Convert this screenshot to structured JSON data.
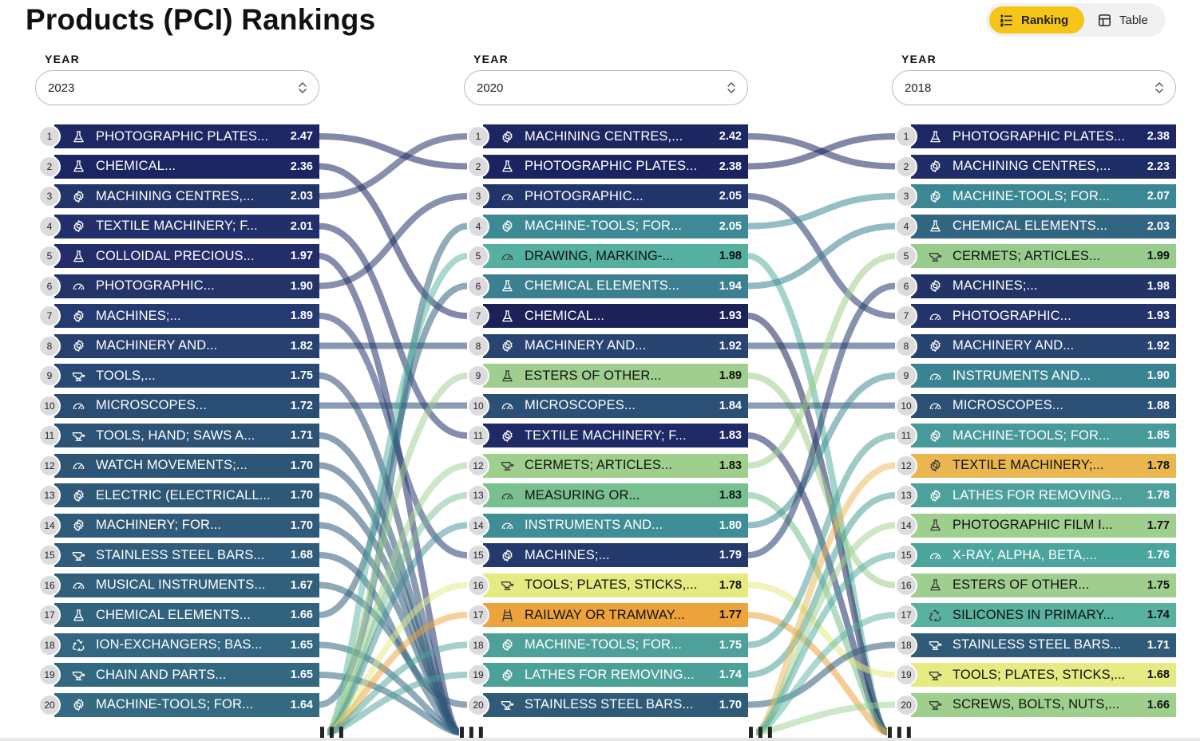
{
  "page": {
    "title": "Products (PCI) Rankings"
  },
  "view_toggle": {
    "ranking_label": "Ranking",
    "table_label": "Table",
    "active": "Ranking"
  },
  "year_label": "YEAR",
  "more_glyph": "▌▌▌",
  "columns": [
    {
      "year": "2023",
      "rows": [
        {
          "rank": "1",
          "name": "PHOTOGRAPHIC PLATES...",
          "value": "2.47",
          "icon": "flask-icon",
          "color": "#1d2763"
        },
        {
          "rank": "2",
          "name": "CHEMICAL...",
          "value": "2.36",
          "icon": "flask-icon",
          "color": "#1b2562"
        },
        {
          "rank": "3",
          "name": "MACHINING CENTRES,...",
          "value": "2.03",
          "icon": "gear-icon",
          "color": "#233568"
        },
        {
          "rank": "4",
          "name": "TEXTILE MACHINERY; F...",
          "value": "2.01",
          "icon": "gear-icon",
          "color": "#21306a"
        },
        {
          "rank": "5",
          "name": "COLLOIDAL PRECIOUS...",
          "value": "1.97",
          "icon": "flask-icon",
          "color": "#222d6a"
        },
        {
          "rank": "6",
          "name": "PHOTOGRAPHIC...",
          "value": "1.90",
          "icon": "gauge-icon",
          "color": "#243469"
        },
        {
          "rank": "7",
          "name": "MACHINES;...",
          "value": "1.89",
          "icon": "gear-icon",
          "color": "#243a70"
        },
        {
          "rank": "8",
          "name": "MACHINERY AND...",
          "value": "1.82",
          "icon": "gear-icon",
          "color": "#27406f"
        },
        {
          "rank": "9",
          "name": "TOOLS,...",
          "value": "1.75",
          "icon": "anvil-icon",
          "color": "#294873"
        },
        {
          "rank": "10",
          "name": "MICROSCOPES...",
          "value": "1.72",
          "icon": "gauge-icon",
          "color": "#2a4d73"
        },
        {
          "rank": "11",
          "name": "TOOLS, HAND; SAWS A...",
          "value": "1.71",
          "icon": "anvil-icon",
          "color": "#2c5275"
        },
        {
          "rank": "12",
          "name": "WATCH MOVEMENTS;...",
          "value": "1.70",
          "icon": "gauge-icon",
          "color": "#2d5576"
        },
        {
          "rank": "13",
          "name": "ELECTRIC (ELECTRICALL...",
          "value": "1.70",
          "icon": "gear-icon",
          "color": "#2e5878"
        },
        {
          "rank": "14",
          "name": "MACHINERY; FOR...",
          "value": "1.70",
          "icon": "gear-icon",
          "color": "#2f5a79"
        },
        {
          "rank": "15",
          "name": "STAINLESS STEEL BARS...",
          "value": "1.68",
          "icon": "anvil-icon",
          "color": "#305d7b"
        },
        {
          "rank": "16",
          "name": "MUSICAL INSTRUMENTS...",
          "value": "1.67",
          "icon": "gauge-icon",
          "color": "#31607c"
        },
        {
          "rank": "17",
          "name": "CHEMICAL ELEMENTS...",
          "value": "1.66",
          "icon": "flask-icon",
          "color": "#32637e"
        },
        {
          "rank": "18",
          "name": "ION-EXCHANGERS; BAS...",
          "value": "1.65",
          "icon": "recycle-icon",
          "color": "#336680"
        },
        {
          "rank": "19",
          "name": "CHAIN AND PARTS...",
          "value": "1.65",
          "icon": "anvil-icon",
          "color": "#336881"
        },
        {
          "rank": "20",
          "name": "MACHINE-TOOLS; FOR...",
          "value": "1.64",
          "icon": "gear-icon",
          "color": "#346b82"
        }
      ]
    },
    {
      "year": "2020",
      "rows": [
        {
          "rank": "1",
          "name": "MACHINING CENTRES,...",
          "value": "2.42",
          "icon": "gear-icon",
          "color": "#1c2660"
        },
        {
          "rank": "2",
          "name": "PHOTOGRAPHIC PLATES...",
          "value": "2.38",
          "icon": "flask-icon",
          "color": "#1b2460"
        },
        {
          "rank": "3",
          "name": "PHOTOGRAPHIC...",
          "value": "2.05",
          "icon": "gauge-icon",
          "color": "#22356b"
        },
        {
          "rank": "4",
          "name": "MACHINE-TOOLS; FOR...",
          "value": "2.05",
          "icon": "gear-icon",
          "color": "#3d8a96"
        },
        {
          "rank": "5",
          "name": "DRAWING, MARKING-...",
          "value": "1.98",
          "icon": "gauge-icon",
          "color": "#56b0a0"
        },
        {
          "rank": "6",
          "name": "CHEMICAL ELEMENTS...",
          "value": "1.94",
          "icon": "flask-icon",
          "color": "#3b7f90"
        },
        {
          "rank": "7",
          "name": "CHEMICAL...",
          "value": "1.93",
          "icon": "flask-icon",
          "color": "#1c2257"
        },
        {
          "rank": "8",
          "name": "MACHINERY AND...",
          "value": "1.92",
          "icon": "gear-icon",
          "color": "#284572"
        },
        {
          "rank": "9",
          "name": "ESTERS OF OTHER...",
          "value": "1.89",
          "icon": "flask-icon",
          "color": "#9fce8e"
        },
        {
          "rank": "10",
          "name": "MICROSCOPES...",
          "value": "1.84",
          "icon": "gauge-icon",
          "color": "#2b4f75"
        },
        {
          "rank": "11",
          "name": "TEXTILE MACHINERY; F...",
          "value": "1.83",
          "icon": "gear-icon",
          "color": "#1e2a66"
        },
        {
          "rank": "12",
          "name": "CERMETS; ARTICLES...",
          "value": "1.83",
          "icon": "anvil-icon",
          "color": "#9ecf8d"
        },
        {
          "rank": "13",
          "name": "MEASURING OR...",
          "value": "1.83",
          "icon": "gauge-icon",
          "color": "#78c08f"
        },
        {
          "rank": "14",
          "name": "INSTRUMENTS AND...",
          "value": "1.80",
          "icon": "gauge-icon",
          "color": "#3f8d96"
        },
        {
          "rank": "15",
          "name": "MACHINES;...",
          "value": "1.79",
          "icon": "gear-icon",
          "color": "#243a6c"
        },
        {
          "rank": "16",
          "name": "TOOLS; PLATES, STICKS,...",
          "value": "1.78",
          "icon": "anvil-icon",
          "color": "#e5ea82"
        },
        {
          "rank": "17",
          "name": "RAILWAY OR TRAMWAY...",
          "value": "1.77",
          "icon": "rail-icon",
          "color": "#eda33c"
        },
        {
          "rank": "18",
          "name": "MACHINE-TOOLS; FOR...",
          "value": "1.75",
          "icon": "gear-icon",
          "color": "#4ea19a"
        },
        {
          "rank": "19",
          "name": "LATHES FOR REMOVING...",
          "value": "1.74",
          "icon": "gear-icon",
          "color": "#4ca09a"
        },
        {
          "rank": "20",
          "name": "STAINLESS STEEL BARS...",
          "value": "1.70",
          "icon": "anvil-icon",
          "color": "#2f5b79"
        }
      ]
    },
    {
      "year": "2018",
      "rows": [
        {
          "rank": "1",
          "name": "PHOTOGRAPHIC PLATES...",
          "value": "2.38",
          "icon": "flask-icon",
          "color": "#1d2763"
        },
        {
          "rank": "2",
          "name": "MACHINING CENTRES,...",
          "value": "2.23",
          "icon": "gear-icon",
          "color": "#1f2d66"
        },
        {
          "rank": "3",
          "name": "MACHINE-TOOLS; FOR...",
          "value": "2.07",
          "icon": "gear-icon",
          "color": "#3c8794"
        },
        {
          "rank": "4",
          "name": "CHEMICAL ELEMENTS...",
          "value": "2.03",
          "icon": "flask-icon",
          "color": "#316581"
        },
        {
          "rank": "5",
          "name": "CERMETS; ARTICLES...",
          "value": "1.99",
          "icon": "anvil-icon",
          "color": "#97cc8c"
        },
        {
          "rank": "6",
          "name": "MACHINES;...",
          "value": "1.98",
          "icon": "gear-icon",
          "color": "#223466"
        },
        {
          "rank": "7",
          "name": "PHOTOGRAPHIC...",
          "value": "1.93",
          "icon": "gauge-icon",
          "color": "#23346a"
        },
        {
          "rank": "8",
          "name": "MACHINERY AND...",
          "value": "1.92",
          "icon": "gear-icon",
          "color": "#284572"
        },
        {
          "rank": "9",
          "name": "INSTRUMENTS AND...",
          "value": "1.90",
          "icon": "gauge-icon",
          "color": "#3a8390"
        },
        {
          "rank": "10",
          "name": "MICROSCOPES...",
          "value": "1.88",
          "icon": "gauge-icon",
          "color": "#2b4f75"
        },
        {
          "rank": "11",
          "name": "MACHINE-TOOLS; FOR...",
          "value": "1.85",
          "icon": "gear-icon",
          "color": "#48999a"
        },
        {
          "rank": "12",
          "name": "TEXTILE MACHINERY;...",
          "value": "1.78",
          "icon": "gear-icon",
          "color": "#eab64f"
        },
        {
          "rank": "13",
          "name": "LATHES FOR REMOVING...",
          "value": "1.78",
          "icon": "gear-icon",
          "color": "#4ea19b"
        },
        {
          "rank": "14",
          "name": "PHOTOGRAPHIC FILM I...",
          "value": "1.77",
          "icon": "flask-icon",
          "color": "#9fcf8e"
        },
        {
          "rank": "15",
          "name": "X-RAY, ALPHA, BETA,...",
          "value": "1.76",
          "icon": "gauge-icon",
          "color": "#4aa59c"
        },
        {
          "rank": "16",
          "name": "ESTERS OF OTHER...",
          "value": "1.75",
          "icon": "flask-icon",
          "color": "#9fce8e"
        },
        {
          "rank": "17",
          "name": "SILICONES IN PRIMARY...",
          "value": "1.74",
          "icon": "recycle-icon",
          "color": "#58b29f"
        },
        {
          "rank": "18",
          "name": "STAINLESS STEEL BARS...",
          "value": "1.71",
          "icon": "anvil-icon",
          "color": "#2f5b79"
        },
        {
          "rank": "19",
          "name": "TOOLS; PLATES, STICKS,...",
          "value": "1.68",
          "icon": "anvil-icon",
          "color": "#e5ea82"
        },
        {
          "rank": "20",
          "name": "SCREWS, BOLTS, NUTS,...",
          "value": "1.66",
          "icon": "anvil-icon",
          "color": "#9ecf8d"
        }
      ]
    }
  ]
}
